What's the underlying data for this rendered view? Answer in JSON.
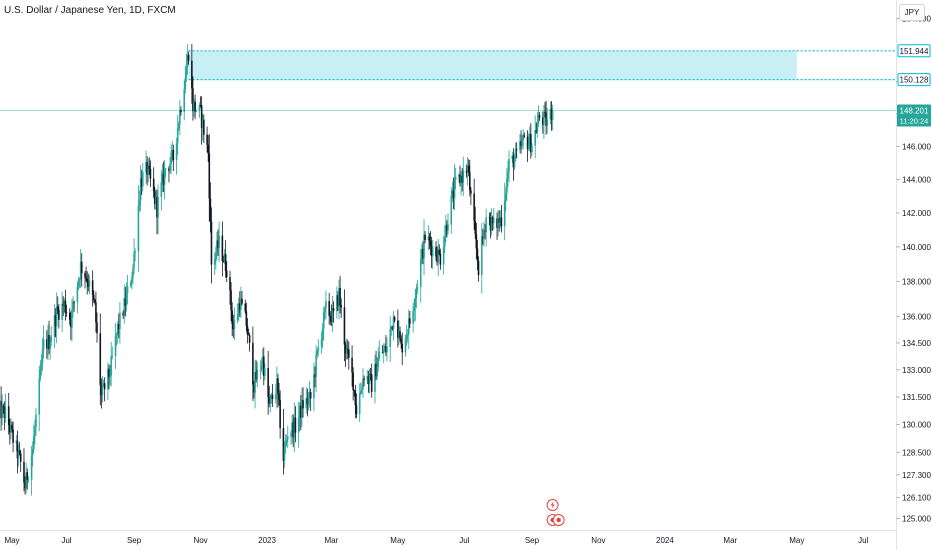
{
  "title": "U.S. Dollar / Japanese Yen, 1D, FXCM",
  "currency": "JPY",
  "colors": {
    "up": "#26a69a",
    "down": "#131722",
    "zone_fill": "#c8eff3",
    "zone_line": "#00bcd4",
    "price_line": "#9fe0d6",
    "axis_text": "#131722",
    "axis_line": "#e0e3eb"
  },
  "events": {
    "lightning_icon": "lightning-icon",
    "earnings_icon": "dividends-icon"
  },
  "chart_data": {
    "type": "candlestick",
    "title": "U.S. Dollar / Japanese Yen, 1D, FXCM",
    "y_scale": "log",
    "ylim": [
      124.4,
      155.2
    ],
    "xlim": [
      "2022-05-01",
      "2024-07-31"
    ],
    "y_ticks": [
      "125.000",
      "126.100",
      "127.300",
      "128.500",
      "130.000",
      "131.500",
      "133.000",
      "134.500",
      "136.000",
      "138.000",
      "140.000",
      "142.000",
      "144.000",
      "146.000",
      "148.000",
      "150.000",
      "154.000"
    ],
    "x_ticks": [
      {
        "date": "2022-05-01",
        "label": "May"
      },
      {
        "date": "2022-07-01",
        "label": "Jul"
      },
      {
        "date": "2022-09-01",
        "label": "Sep"
      },
      {
        "date": "2022-11-01",
        "label": "Nov"
      },
      {
        "date": "2023-01-01",
        "label": "2023"
      },
      {
        "date": "2023-03-01",
        "label": "Mar"
      },
      {
        "date": "2023-05-01",
        "label": "May"
      },
      {
        "date": "2023-07-01",
        "label": "Jul"
      },
      {
        "date": "2023-09-01",
        "label": "Sep"
      },
      {
        "date": "2023-11-01",
        "label": "Nov"
      },
      {
        "date": "2024-01-01",
        "label": "2024"
      },
      {
        "date": "2024-03-01",
        "label": "Mar"
      },
      {
        "date": "2024-05-01",
        "label": "May"
      },
      {
        "date": "2024-07-01",
        "label": "Jul"
      }
    ],
    "zone": {
      "top": 151.944,
      "bottom": 150.128,
      "top_label": "151.944",
      "bottom_label": "150.128",
      "start": "2022-10-21",
      "end": "2024-05-01"
    },
    "last_price": {
      "value": 148.201,
      "label": "148.201",
      "countdown": "11:20:24"
    },
    "event_dates": [
      "2023-09-20"
    ],
    "path": [
      [
        "2022-04-28",
        130.8
      ],
      [
        "2022-05-06",
        130.6
      ],
      [
        "2022-05-13",
        129.2
      ],
      [
        "2022-05-20",
        127.9
      ],
      [
        "2022-05-24",
        126.7
      ],
      [
        "2022-05-31",
        128.7
      ],
      [
        "2022-06-07",
        132.6
      ],
      [
        "2022-06-10",
        134.4
      ],
      [
        "2022-06-15",
        134.6
      ],
      [
        "2022-06-22",
        136.2
      ],
      [
        "2022-06-29",
        136.7
      ],
      [
        "2022-07-05",
        135.8
      ],
      [
        "2022-07-14",
        138.9
      ],
      [
        "2022-07-20",
        138.2
      ],
      [
        "2022-07-27",
        136.5
      ],
      [
        "2022-08-02",
        131.5
      ],
      [
        "2022-08-10",
        132.9
      ],
      [
        "2022-08-17",
        135.3
      ],
      [
        "2022-08-24",
        136.8
      ],
      [
        "2022-08-31",
        138.8
      ],
      [
        "2022-09-07",
        143.9
      ],
      [
        "2022-09-13",
        144.6
      ],
      [
        "2022-09-22",
        142.3
      ],
      [
        "2022-09-30",
        144.7
      ],
      [
        "2022-10-07",
        145.3
      ],
      [
        "2022-10-14",
        148.6
      ],
      [
        "2022-10-21",
        151.9
      ],
      [
        "2022-10-25",
        148.5
      ],
      [
        "2022-11-01",
        148.0
      ],
      [
        "2022-11-05",
        146.6
      ],
      [
        "2022-11-08",
        145.6
      ],
      [
        "2022-11-11",
        139.0
      ],
      [
        "2022-11-18",
        140.2
      ],
      [
        "2022-11-25",
        138.8
      ],
      [
        "2022-12-01",
        135.3
      ],
      [
        "2022-12-07",
        136.9
      ],
      [
        "2022-12-13",
        135.6
      ],
      [
        "2022-12-20",
        132.2
      ],
      [
        "2022-12-28",
        133.6
      ],
      [
        "2023-01-03",
        131.0
      ],
      [
        "2023-01-10",
        132.1
      ],
      [
        "2023-01-16",
        128.2
      ],
      [
        "2023-01-20",
        129.6
      ],
      [
        "2023-01-27",
        129.9
      ],
      [
        "2023-02-03",
        131.1
      ],
      [
        "2023-02-10",
        131.4
      ],
      [
        "2023-02-17",
        134.2
      ],
      [
        "2023-02-24",
        136.4
      ],
      [
        "2023-03-03",
        136.0
      ],
      [
        "2023-03-08",
        137.3
      ],
      [
        "2023-03-14",
        134.2
      ],
      [
        "2023-03-21",
        132.4
      ],
      [
        "2023-03-24",
        130.8
      ],
      [
        "2023-03-31",
        132.8
      ],
      [
        "2023-04-07",
        132.2
      ],
      [
        "2023-04-14",
        133.8
      ],
      [
        "2023-04-21",
        134.2
      ],
      [
        "2023-04-28",
        136.3
      ],
      [
        "2023-05-04",
        134.2
      ],
      [
        "2023-05-12",
        135.7
      ],
      [
        "2023-05-19",
        138.0
      ],
      [
        "2023-05-26",
        140.6
      ],
      [
        "2023-06-02",
        139.9
      ],
      [
        "2023-06-09",
        139.4
      ],
      [
        "2023-06-16",
        141.8
      ],
      [
        "2023-06-23",
        143.7
      ],
      [
        "2023-06-30",
        144.3
      ],
      [
        "2023-07-04",
        144.7
      ],
      [
        "2023-07-11",
        140.4
      ],
      [
        "2023-07-14",
        138.8
      ],
      [
        "2023-07-21",
        141.8
      ],
      [
        "2023-07-28",
        141.2
      ],
      [
        "2023-08-04",
        141.7
      ],
      [
        "2023-08-11",
        144.9
      ],
      [
        "2023-08-18",
        145.4
      ],
      [
        "2023-08-25",
        146.4
      ],
      [
        "2023-09-01",
        146.2
      ],
      [
        "2023-09-08",
        147.8
      ],
      [
        "2023-09-14",
        147.5
      ],
      [
        "2023-09-20",
        148.2
      ]
    ]
  }
}
